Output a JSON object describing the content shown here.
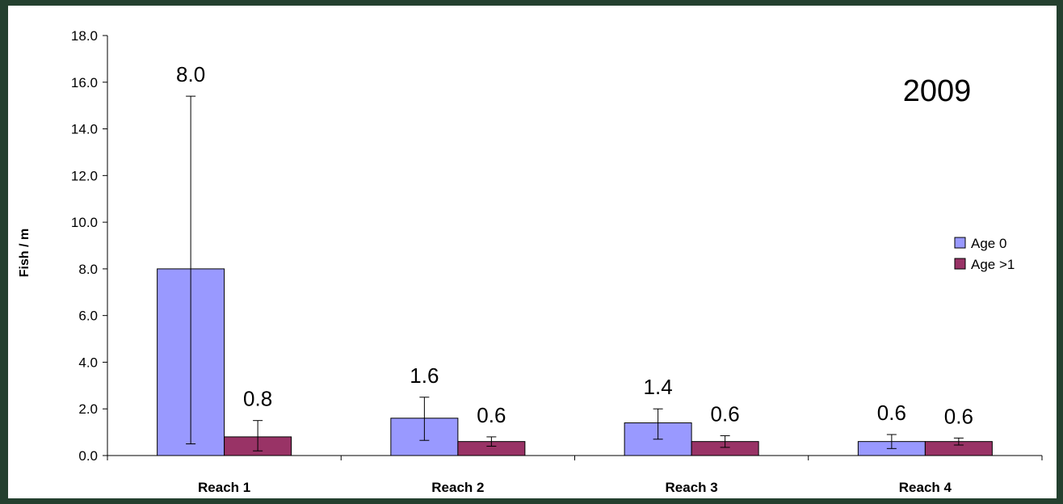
{
  "chart_data": {
    "type": "bar",
    "annotation": "2009",
    "ylabel": "Fish / m",
    "xlabel": "",
    "ylim": [
      0,
      18
    ],
    "yticks": [
      "0.0",
      "2.0",
      "4.0",
      "6.0",
      "8.0",
      "10.0",
      "12.0",
      "14.0",
      "16.0",
      "18.0"
    ],
    "categories": [
      "Reach 1",
      "Reach 2",
      "Reach 3",
      "Reach 4"
    ],
    "grid": false,
    "legend_position": "right",
    "series": [
      {
        "name": "Age 0",
        "color": "#9999ff",
        "values": [
          8.0,
          1.6,
          1.4,
          0.6
        ],
        "labels": [
          "8.0",
          "1.6",
          "1.4",
          "0.6"
        ],
        "err_low": [
          0.5,
          0.65,
          0.7,
          0.3
        ],
        "err_high": [
          15.4,
          2.5,
          2.0,
          0.9
        ]
      },
      {
        "name": "Age >1",
        "color": "#993366",
        "values": [
          0.8,
          0.6,
          0.6,
          0.6
        ],
        "labels": [
          "0.8",
          "0.6",
          "0.6",
          "0.6"
        ],
        "err_low": [
          0.2,
          0.4,
          0.35,
          0.45
        ],
        "err_high": [
          1.5,
          0.8,
          0.85,
          0.75
        ]
      }
    ]
  }
}
